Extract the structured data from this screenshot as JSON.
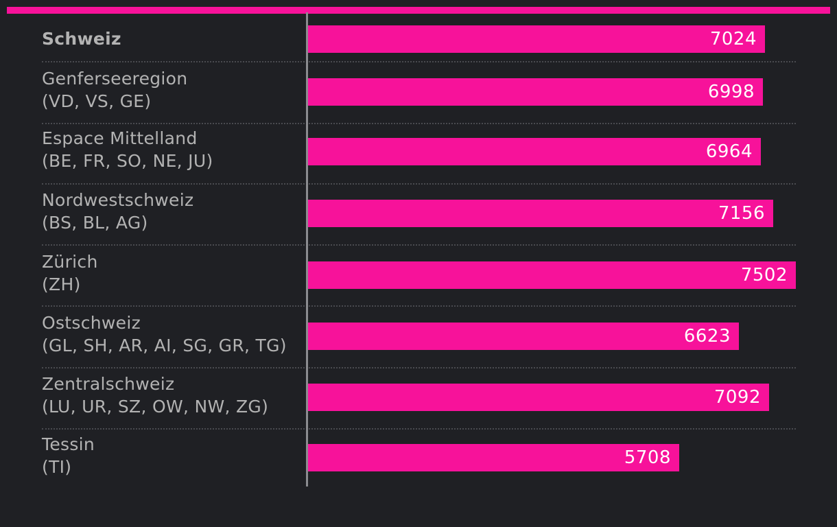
{
  "colors": {
    "bar": "#f7129a",
    "background": "#1f2024"
  },
  "chart_data": {
    "type": "bar",
    "orientation": "horizontal",
    "title": "",
    "xlabel": "",
    "ylabel": "",
    "xlim": [
      0,
      7502
    ],
    "grid": false,
    "legend": "none",
    "categories": [
      {
        "name": "Schweiz",
        "sub": "",
        "bold": true
      },
      {
        "name": "Genferseeregion",
        "sub": "(VD, VS, GE)",
        "bold": false
      },
      {
        "name": "Espace Mittelland",
        "sub": "(BE, FR, SO, NE, JU)",
        "bold": false
      },
      {
        "name": "Nordwestschweiz",
        "sub": "(BS, BL, AG)",
        "bold": false
      },
      {
        "name": "Zürich",
        "sub": "(ZH)",
        "bold": false
      },
      {
        "name": "Ostschweiz",
        "sub": "(GL, SH, AR, AI, SG, GR, TG)",
        "bold": false
      },
      {
        "name": "Zentralschweiz",
        "sub": "(LU, UR, SZ, OW, NW, ZG)",
        "bold": false
      },
      {
        "name": "Tessin",
        "sub": "(TI)",
        "bold": false
      }
    ],
    "values": [
      7024,
      6998,
      6964,
      7156,
      7502,
      6623,
      7092,
      5708
    ]
  }
}
